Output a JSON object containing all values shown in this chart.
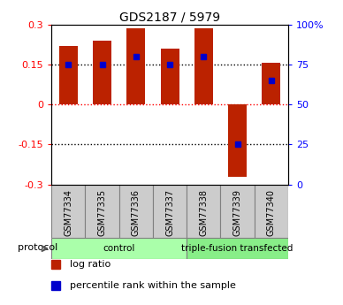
{
  "title": "GDS2187 / 5979",
  "samples": [
    "GSM77334",
    "GSM77335",
    "GSM77336",
    "GSM77337",
    "GSM77338",
    "GSM77339",
    "GSM77340"
  ],
  "log_ratios": [
    0.22,
    0.24,
    0.285,
    0.21,
    0.285,
    -0.27,
    0.155
  ],
  "percentile_ranks": [
    75,
    75,
    80,
    75,
    80,
    25,
    65
  ],
  "groups": [
    {
      "label": "control",
      "start": 0,
      "end": 4,
      "color": "#aaffaa"
    },
    {
      "label": "triple-fusion transfected",
      "start": 4,
      "end": 7,
      "color": "#88ee88"
    }
  ],
  "ylim": [
    -0.3,
    0.3
  ],
  "yticks_left": [
    -0.3,
    -0.15,
    0,
    0.15,
    0.3
  ],
  "yticks_right": [
    0,
    25,
    50,
    75,
    100
  ],
  "bar_color": "#bb2200",
  "dot_color": "#0000cc",
  "protocol_label": "protocol",
  "legend_items": [
    {
      "color": "#bb2200",
      "label": "log ratio"
    },
    {
      "color": "#0000cc",
      "label": "percentile rank within the sample"
    }
  ],
  "bar_width": 0.55,
  "sample_cell_color": "#cccccc",
  "fig_width": 3.88,
  "fig_height": 3.45,
  "dpi": 100
}
